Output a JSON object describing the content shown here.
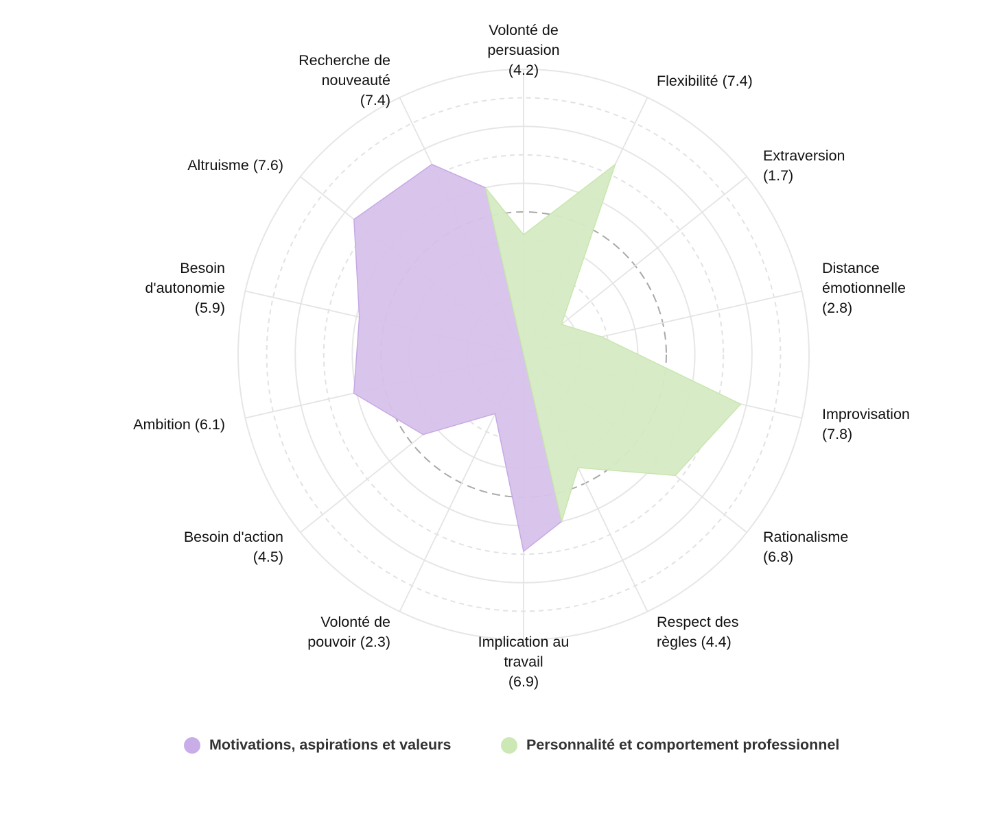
{
  "chart_data": {
    "type": "radar",
    "range": [
      0,
      10
    ],
    "reference_level": 5,
    "grid": true,
    "legend_position": "bottom",
    "axes": [
      {
        "name": "Volonté de persuasion",
        "value": 4.2,
        "label_lines": [
          "Volonté de",
          "persuasion",
          "(4.2)"
        ]
      },
      {
        "name": "Flexibilité",
        "value": 7.4,
        "label_lines": [
          "Flexibilité (7.4)"
        ]
      },
      {
        "name": "Extraversion",
        "value": 1.7,
        "label_lines": [
          "Extraversion",
          "(1.7)"
        ]
      },
      {
        "name": "Distance émotionnelle",
        "value": 2.8,
        "label_lines": [
          "Distance",
          "émotionnelle",
          "(2.8)"
        ]
      },
      {
        "name": "Improvisation",
        "value": 7.8,
        "label_lines": [
          "Improvisation",
          "(7.8)"
        ]
      },
      {
        "name": "Rationalisme",
        "value": 6.8,
        "label_lines": [
          "Rationalisme",
          "(6.8)"
        ]
      },
      {
        "name": "Respect des règles",
        "value": 4.4,
        "label_lines": [
          "Respect des",
          "règles (4.4)"
        ]
      },
      {
        "name": "Implication au travail",
        "value": 6.9,
        "label_lines": [
          "Implication au",
          "travail",
          "(6.9)"
        ]
      },
      {
        "name": "Volonté de pouvoir",
        "value": 2.3,
        "label_lines": [
          "Volonté de",
          "pouvoir (2.3)"
        ]
      },
      {
        "name": "Besoin d'action",
        "value": 4.5,
        "label_lines": [
          "Besoin d'action",
          "(4.5)"
        ]
      },
      {
        "name": "Ambition",
        "value": 6.1,
        "label_lines": [
          "Ambition (6.1)"
        ]
      },
      {
        "name": "Besoin d'autonomie",
        "value": 5.9,
        "label_lines": [
          "Besoin",
          "d'autonomie",
          "(5.9)"
        ]
      },
      {
        "name": "Altruisme",
        "value": 7.6,
        "label_lines": [
          "Altruisme (7.6)"
        ]
      },
      {
        "name": "Recherche de nouveauté",
        "value": 7.4,
        "label_lines": [
          "Recherche de",
          "nouveauté",
          "(7.4)"
        ]
      }
    ],
    "series": [
      {
        "name": "Motivations, aspirations et valeurs",
        "axes": [
          7,
          8,
          9,
          10,
          11,
          12,
          13
        ],
        "color": "#c6a9e6",
        "fill": "#d7c1ea"
      },
      {
        "name": "Personnalité et comportement professionnel",
        "axes": [
          0,
          1,
          2,
          3,
          4,
          5,
          6
        ],
        "color": "#c8e6ae",
        "fill": "#d5ebc3"
      }
    ]
  }
}
